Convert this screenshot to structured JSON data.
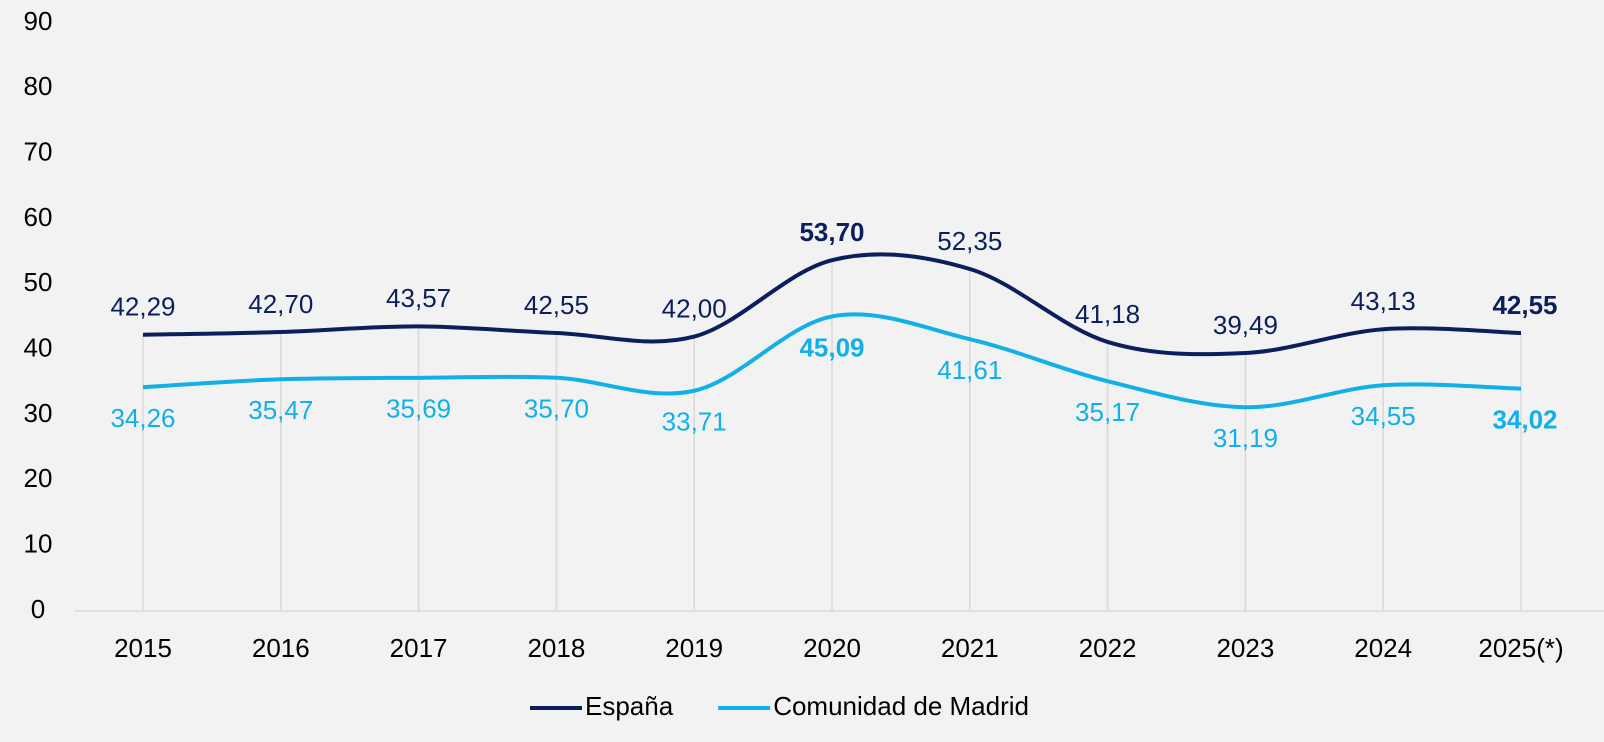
{
  "chart_data": {
    "type": "line",
    "categories": [
      "2015",
      "2016",
      "2017",
      "2018",
      "2019",
      "2020",
      "2021",
      "2022",
      "2023",
      "2024",
      "2025(*)"
    ],
    "series": [
      {
        "name": "España",
        "color": "#0c1f5c",
        "values": [
          42.29,
          42.7,
          43.57,
          42.55,
          42.0,
          53.7,
          52.35,
          41.18,
          39.49,
          43.13,
          42.55
        ],
        "value_labels": [
          "42,29",
          "42,70",
          "43,57",
          "42,55",
          "42,00",
          "53,70",
          "52,35",
          "41,18",
          "39,49",
          "43,13",
          "42,55"
        ],
        "label_weights": [
          "normal",
          "normal",
          "normal",
          "normal",
          "normal",
          "bold",
          "normal",
          "normal",
          "normal",
          "normal",
          "bold"
        ]
      },
      {
        "name": "Comunidad de Madrid",
        "color": "#12b0e8",
        "values": [
          34.26,
          35.47,
          35.69,
          35.7,
          33.71,
          45.09,
          41.61,
          35.17,
          31.19,
          34.55,
          34.02
        ],
        "value_labels": [
          "34,26",
          "35,47",
          "35,69",
          "35,70",
          "33,71",
          "45,09",
          "41,61",
          "35,17",
          "31,19",
          "34,55",
          "34,02"
        ],
        "label_weights": [
          "normal",
          "normal",
          "normal",
          "normal",
          "normal",
          "bold",
          "normal",
          "normal",
          "normal",
          "normal",
          "bold"
        ]
      }
    ],
    "ylim": [
      0,
      90
    ],
    "yticks": [
      0,
      10,
      20,
      30,
      40,
      50,
      60,
      70,
      80,
      90
    ],
    "smooth": true,
    "legend": "bottom"
  }
}
